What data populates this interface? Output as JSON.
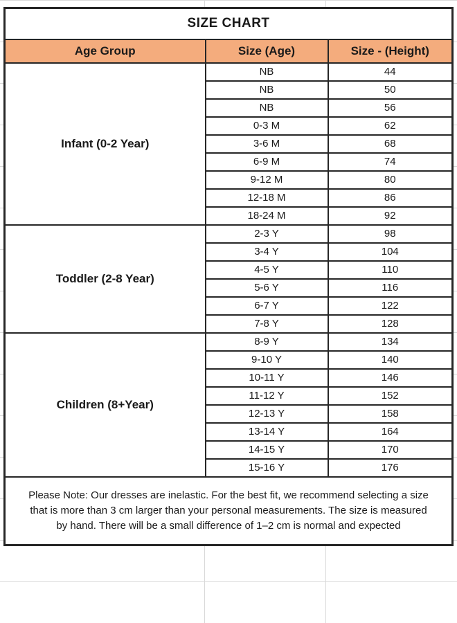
{
  "chart_data": {
    "type": "table",
    "title": "SIZE CHART",
    "columns": [
      "Age Group",
      "Size (Age)",
      "Size - (Height)"
    ],
    "groups": [
      {
        "label": "Infant (0-2 Year)",
        "rows": [
          [
            "NB",
            "44"
          ],
          [
            "NB",
            "50"
          ],
          [
            "NB",
            "56"
          ],
          [
            "0-3 M",
            "62"
          ],
          [
            "3-6 M",
            "68"
          ],
          [
            "6-9 M",
            "74"
          ],
          [
            "9-12 M",
            "80"
          ],
          [
            "12-18 M",
            "86"
          ],
          [
            "18-24 M",
            "92"
          ]
        ]
      },
      {
        "label": "Toddler (2-8 Year)",
        "rows": [
          [
            "2-3 Y",
            "98"
          ],
          [
            "3-4 Y",
            "104"
          ],
          [
            "4-5 Y",
            "110"
          ],
          [
            "5-6 Y",
            "116"
          ],
          [
            "6-7 Y",
            "122"
          ],
          [
            "7-8 Y",
            "128"
          ]
        ]
      },
      {
        "label": "Children (8+Year)",
        "rows": [
          [
            "8-9 Y",
            "134"
          ],
          [
            "9-10 Y",
            "140"
          ],
          [
            "10-11 Y",
            "146"
          ],
          [
            "11-12 Y",
            "152"
          ],
          [
            "12-13 Y",
            "158"
          ],
          [
            "13-14 Y",
            "164"
          ],
          [
            "14-15 Y",
            "170"
          ],
          [
            "15-16 Y",
            "176"
          ]
        ]
      }
    ],
    "note": "Please Note: Our dresses are inelastic. For the best fit, we recommend selecting a size that is more than 3 cm larger than your personal measurements. The size is measured by hand. There will be a small difference of 1–2 cm is normal and expected"
  },
  "colors": {
    "header_bg": "#F4AC7D",
    "border": "#262626",
    "gridline": "#D9D9D9",
    "text": "#1A1A1A"
  }
}
